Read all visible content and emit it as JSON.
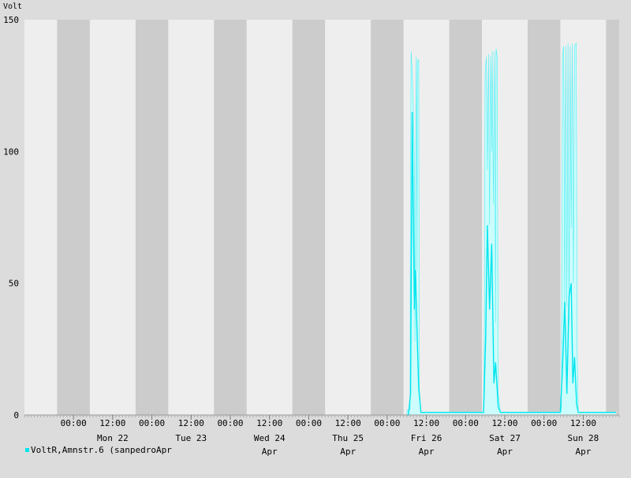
{
  "chart_data": {
    "type": "area",
    "ylabel": "Volt",
    "ylim": [
      0,
      150
    ],
    "y_ticks": [
      {
        "value": 150,
        "label": "150"
      },
      {
        "value": 100,
        "label": "100"
      },
      {
        "value": 50,
        "label": "50"
      },
      {
        "value": 0,
        "label": "0"
      }
    ],
    "xlim": [
      "2006-04-21T09:00",
      "2006-04-28T23:00"
    ],
    "x_ticks": [
      {
        "t": "2006-04-22T00:00",
        "label": "00:00"
      },
      {
        "t": "2006-04-22T12:00",
        "label": "12:00"
      },
      {
        "t": "2006-04-23T00:00",
        "label": "00:00"
      },
      {
        "t": "2006-04-23T12:00",
        "label": "12:00"
      },
      {
        "t": "2006-04-24T00:00",
        "label": "00:00"
      },
      {
        "t": "2006-04-24T12:00",
        "label": "12:00"
      },
      {
        "t": "2006-04-25T00:00",
        "label": "00:00"
      },
      {
        "t": "2006-04-25T12:00",
        "label": "12:00"
      },
      {
        "t": "2006-04-26T00:00",
        "label": "00:00"
      },
      {
        "t": "2006-04-26T12:00",
        "label": "12:00"
      },
      {
        "t": "2006-04-27T00:00",
        "label": "00:00"
      },
      {
        "t": "2006-04-27T12:00",
        "label": "12:00"
      },
      {
        "t": "2006-04-28T00:00",
        "label": "00:00"
      },
      {
        "t": "2006-04-28T12:00",
        "label": "12:00"
      }
    ],
    "day_labels": [
      {
        "t": "2006-04-22T12:00",
        "line1": "Mon 22",
        "line2": ""
      },
      {
        "t": "2006-04-23T12:00",
        "line1": "Tue 23",
        "line2": ""
      },
      {
        "t": "2006-04-24T12:00",
        "line1": "Wed 24",
        "line2": "Apr"
      },
      {
        "t": "2006-04-25T12:00",
        "line1": "Thu 25",
        "line2": "Apr"
      },
      {
        "t": "2006-04-26T12:00",
        "line1": "Fri 26",
        "line2": "Apr"
      },
      {
        "t": "2006-04-27T12:00",
        "line1": "Sat 27",
        "line2": "Apr"
      },
      {
        "t": "2006-04-28T12:00",
        "line1": "Sun 28",
        "line2": "Apr"
      }
    ],
    "night_bands": [
      [
        "2006-04-21T19:00",
        "2006-04-22T05:00"
      ],
      [
        "2006-04-22T19:00",
        "2006-04-23T05:00"
      ],
      [
        "2006-04-23T19:00",
        "2006-04-24T05:00"
      ],
      [
        "2006-04-24T19:00",
        "2006-04-25T05:00"
      ],
      [
        "2006-04-25T19:00",
        "2006-04-26T05:00"
      ],
      [
        "2006-04-26T19:00",
        "2006-04-27T05:00"
      ],
      [
        "2006-04-27T19:00",
        "2006-04-28T05:00"
      ],
      [
        "2006-04-28T19:00",
        "2006-04-28T23:00"
      ]
    ],
    "grid": false,
    "legend": "bottom-left",
    "series": [
      {
        "name": "VoltR,Amnstr.6 (sanpedroApr",
        "color": "#00e5ee",
        "fill_color": "#ccfcfc",
        "points": [
          [
            "2006-04-26T06:00",
            0
          ],
          [
            "2006-04-26T06:10",
            2
          ],
          [
            "2006-04-26T07:00",
            2
          ],
          [
            "2006-04-26T07:05",
            60
          ],
          [
            "2006-04-26T07:20",
            138
          ],
          [
            "2006-04-26T07:40",
            130
          ],
          [
            "2006-04-26T08:00",
            116
          ],
          [
            "2006-04-26T08:20",
            96
          ],
          [
            "2006-04-26T08:30",
            28
          ],
          [
            "2006-04-26T08:40",
            80
          ],
          [
            "2006-04-26T08:55",
            136
          ],
          [
            "2006-04-26T09:10",
            55
          ],
          [
            "2006-04-26T09:15",
            134
          ],
          [
            "2006-04-26T09:40",
            135
          ],
          [
            "2006-04-26T09:50",
            10
          ],
          [
            "2006-04-26T10:20",
            1
          ],
          [
            "2006-04-26T20:00",
            1
          ],
          [
            "2006-04-27T04:00",
            1
          ],
          [
            "2006-04-27T05:30",
            1
          ],
          [
            "2006-04-27T05:45",
            30
          ],
          [
            "2006-04-27T06:00",
            130
          ],
          [
            "2006-04-27T06:20",
            136
          ],
          [
            "2006-04-27T06:40",
            93
          ],
          [
            "2006-04-27T07:00",
            137
          ],
          [
            "2006-04-27T07:20",
            72
          ],
          [
            "2006-04-27T07:40",
            136
          ],
          [
            "2006-04-27T08:00",
            100
          ],
          [
            "2006-04-27T08:10",
            138
          ],
          [
            "2006-04-27T08:30",
            80
          ],
          [
            "2006-04-27T08:50",
            138
          ],
          [
            "2006-04-27T09:10",
            35
          ],
          [
            "2006-04-27T09:20",
            139
          ],
          [
            "2006-04-27T09:40",
            136
          ],
          [
            "2006-04-27T10:00",
            8
          ],
          [
            "2006-04-27T10:40",
            1
          ],
          [
            "2006-04-27T20:00",
            1
          ],
          [
            "2006-04-28T05:00",
            1
          ],
          [
            "2006-04-28T05:20",
            2
          ],
          [
            "2006-04-28T05:40",
            136
          ],
          [
            "2006-04-28T06:00",
            140
          ],
          [
            "2006-04-28T06:20",
            42
          ],
          [
            "2006-04-28T06:40",
            140
          ],
          [
            "2006-04-28T07:00",
            41
          ],
          [
            "2006-04-28T07:20",
            141
          ],
          [
            "2006-04-28T07:40",
            35
          ],
          [
            "2006-04-28T08:00",
            140
          ],
          [
            "2006-04-28T08:20",
            71
          ],
          [
            "2006-04-28T08:40",
            141
          ],
          [
            "2006-04-28T09:00",
            50
          ],
          [
            "2006-04-28T09:20",
            140
          ],
          [
            "2006-04-28T09:50",
            141
          ],
          [
            "2006-04-28T10:10",
            22
          ],
          [
            "2006-04-28T10:30",
            1
          ],
          [
            "2006-04-28T22:00",
            1
          ]
        ],
        "line_points": [
          [
            "2006-04-26T06:00",
            0
          ],
          [
            "2006-04-26T06:30",
            0
          ],
          [
            "2006-04-26T07:10",
            8
          ],
          [
            "2006-04-26T07:40",
            115
          ],
          [
            "2006-04-26T08:20",
            40
          ],
          [
            "2006-04-26T08:40",
            55
          ],
          [
            "2006-04-26T09:00",
            38
          ],
          [
            "2006-04-26T09:40",
            10
          ],
          [
            "2006-04-26T10:20",
            1
          ],
          [
            "2006-04-27T05:30",
            1
          ],
          [
            "2006-04-27T06:10",
            30
          ],
          [
            "2006-04-27T06:40",
            72
          ],
          [
            "2006-04-27T07:20",
            40
          ],
          [
            "2006-04-27T08:00",
            65
          ],
          [
            "2006-04-27T08:40",
            12
          ],
          [
            "2006-04-27T09:10",
            20
          ],
          [
            "2006-04-27T10:00",
            3
          ],
          [
            "2006-04-27T10:40",
            1
          ],
          [
            "2006-04-28T05:00",
            1
          ],
          [
            "2006-04-28T05:40",
            18
          ],
          [
            "2006-04-28T06:20",
            43
          ],
          [
            "2006-04-28T07:00",
            8
          ],
          [
            "2006-04-28T07:40",
            45
          ],
          [
            "2006-04-28T08:20",
            50
          ],
          [
            "2006-04-28T08:50",
            12
          ],
          [
            "2006-04-28T09:20",
            22
          ],
          [
            "2006-04-28T10:00",
            4
          ],
          [
            "2006-04-28T10:30",
            1
          ],
          [
            "2006-04-28T22:00",
            1
          ]
        ]
      }
    ]
  }
}
